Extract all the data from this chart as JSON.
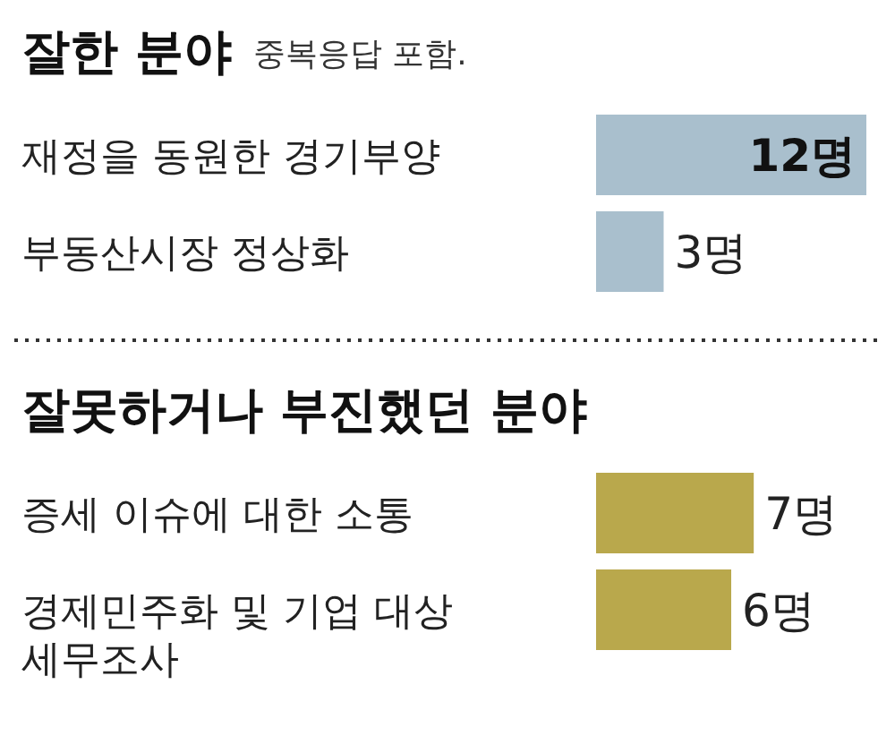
{
  "chart_data": [
    {
      "type": "bar",
      "orientation": "horizontal",
      "title": "잘한 분야",
      "subtitle": "중복응답 포함.",
      "categories": [
        "재정을 동원한 경기부양",
        "부동산시장 정상화"
      ],
      "values": [
        12,
        3
      ],
      "color": "#a9bfcd",
      "value_labels": [
        "12명",
        "3명"
      ]
    },
    {
      "type": "bar",
      "orientation": "horizontal",
      "title": "잘못하거나 부진했던 분야",
      "categories": [
        "증세 이슈에 대한 소통",
        "경제민주화 및 기업 대상 세무조사"
      ],
      "values": [
        7,
        6
      ],
      "color": "#b9a84c",
      "value_labels": [
        "7명",
        "6명"
      ]
    }
  ]
}
